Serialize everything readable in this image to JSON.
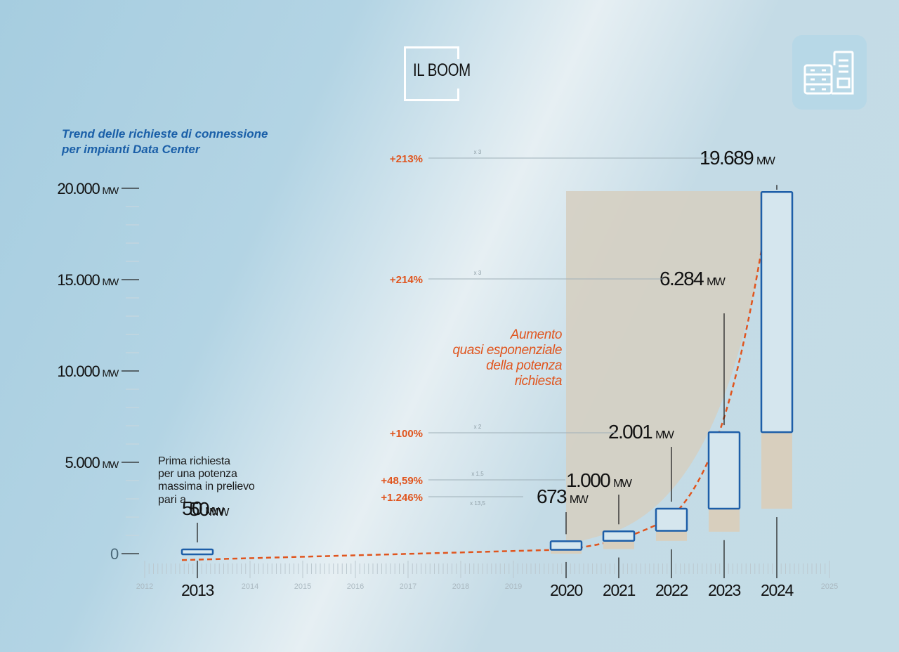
{
  "header": {
    "title": "IL BOOM",
    "subtitle_line1": "Trend delle richieste di connessione",
    "subtitle_line2": "per impianti Data Center",
    "icon": "data-center-server-icon"
  },
  "colors": {
    "accent_orange": "#e0551e",
    "bar_outline": "#1d5ea8",
    "bar_fill": "#d5e6ee",
    "tan_fill": "#d8cfbe",
    "subtitle_blue": "#1a5fa8"
  },
  "annotation_first": {
    "lines": [
      "Prima richiesta",
      "per una potenza",
      "massima in prelievo"
    ],
    "prefix": "pari a",
    "value": "50",
    "unit": "MW"
  },
  "annotation_curve": {
    "lines": [
      "Aumento",
      "quasi esponenziale",
      "della potenza",
      "richiesta"
    ]
  },
  "chart_data": {
    "type": "bar",
    "title": "Trend delle richieste di connessione per impianti Data Center",
    "xlabel": "",
    "ylabel": "MW",
    "ylim": [
      0,
      20000
    ],
    "y_ticks": [
      {
        "value": 0,
        "label": "0",
        "unit": ""
      },
      {
        "value": 5000,
        "label": "5.000",
        "unit": "MW"
      },
      {
        "value": 10000,
        "label": "10.000",
        "unit": "MW"
      },
      {
        "value": 15000,
        "label": "15.000",
        "unit": "MW"
      },
      {
        "value": 20000,
        "label": "20.000",
        "unit": "MW"
      }
    ],
    "y_minor_step": 1000,
    "x_range": [
      2012,
      2025
    ],
    "x_minor_labels": [
      "2012",
      "2014",
      "2015",
      "2016",
      "2017",
      "2018",
      "2019",
      "2025"
    ],
    "categories": [
      "2013",
      "2020",
      "2021",
      "2022",
      "2023",
      "2024"
    ],
    "values": [
      50,
      673,
      1000,
      2001,
      6284,
      19689
    ],
    "value_labels": [
      "50",
      "673",
      "1.000",
      "2.001",
      "6.284",
      "19.689"
    ],
    "value_unit": "MW",
    "grid": false,
    "growth": [
      {
        "from": "2020",
        "to": "2021",
        "pct": "+48,59%",
        "factor": "x 1,5"
      },
      {
        "from": "2013",
        "to": "2020",
        "pct": "+1.246%",
        "factor": "x 13,5"
      },
      {
        "from": "2021",
        "to": "2022",
        "pct": "+100%",
        "factor": "x 2"
      },
      {
        "from": "2022",
        "to": "2023",
        "pct": "+214%",
        "factor": "x 3"
      },
      {
        "from": "2023",
        "to": "2024",
        "pct": "+213%",
        "factor": "x 3"
      }
    ],
    "trend_line": "dashed exponential curve",
    "highlight_range": [
      "2020",
      "2024"
    ]
  }
}
